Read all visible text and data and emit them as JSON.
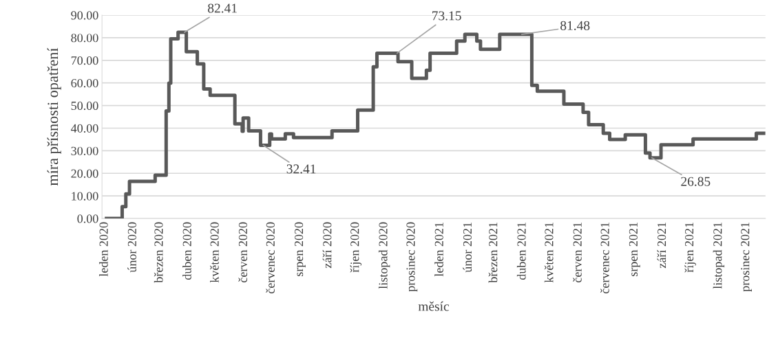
{
  "chart_data": {
    "type": "step",
    "xlabel": "měsíc",
    "ylabel": "míra přísnosti opatření",
    "x": [
      "2020-01-01",
      "2020-01-20",
      "2020-01-24",
      "2020-01-28",
      "2020-02-25",
      "2020-03-08",
      "2020-03-11",
      "2020-03-13",
      "2020-03-21",
      "2020-03-30",
      "2020-04-11",
      "2020-04-18",
      "2020-04-25",
      "2020-05-22",
      "2020-05-30",
      "2020-05-31",
      "2020-06-06",
      "2020-06-19",
      "2020-06-29",
      "2020-07-01",
      "2020-07-16",
      "2020-07-25",
      "2020-09-05",
      "2020-10-03",
      "2020-10-20",
      "2020-10-24",
      "2020-11-16",
      "2020-12-01",
      "2020-12-17",
      "2020-12-21",
      "2021-01-19",
      "2021-01-28",
      "2021-02-10",
      "2021-02-14",
      "2021-03-07",
      "2021-04-11",
      "2021-04-17",
      "2021-05-16",
      "2021-06-06",
      "2021-06-12",
      "2021-06-28",
      "2021-07-05",
      "2021-07-22",
      "2021-08-13",
      "2021-08-18",
      "2021-08-30",
      "2021-10-04",
      "2021-12-12",
      "2021-12-22"
    ],
    "series": [
      {
        "color": "#595959",
        "values": [
          0,
          5.3,
          10.9,
          16.4,
          19.2,
          47.6,
          59.9,
          79.5,
          82.41,
          73.8,
          68.4,
          57.3,
          54.5,
          41.9,
          38.6,
          44.5,
          38.8,
          32.41,
          37.4,
          35.2,
          37.5,
          35.8,
          38.8,
          48.0,
          67.1,
          73.15,
          69.4,
          62.0,
          65.6,
          73.15,
          78.5,
          81.48,
          78.5,
          74.9,
          81.48,
          58.9,
          56.3,
          50.6,
          47.0,
          41.5,
          37.7,
          35.0,
          37.0,
          29.0,
          26.85,
          32.6,
          35.2,
          37.7,
          37.7
        ]
      }
    ],
    "xlim": [
      "2019-12-29",
      "2021-12-22"
    ],
    "xticks": [
      {
        "value": "2020-01-01",
        "label": "leden 2020"
      },
      {
        "value": "2020-02-01",
        "label": "únor 2020"
      },
      {
        "value": "2020-03-01",
        "label": "březen 2020"
      },
      {
        "value": "2020-04-01",
        "label": "duben 2020"
      },
      {
        "value": "2020-05-01",
        "label": "květen 2020"
      },
      {
        "value": "2020-06-01",
        "label": "červen 2020"
      },
      {
        "value": "2020-07-01",
        "label": "červenec 2020"
      },
      {
        "value": "2020-08-01",
        "label": "srpen 2020"
      },
      {
        "value": "2020-09-01",
        "label": "září 2020"
      },
      {
        "value": "2020-10-01",
        "label": "říjen 2020"
      },
      {
        "value": "2020-11-01",
        "label": "listopad 2020"
      },
      {
        "value": "2020-12-01",
        "label": "prosinec 2020"
      },
      {
        "value": "2021-01-01",
        "label": "leden 2021"
      },
      {
        "value": "2021-02-01",
        "label": "únor 2021"
      },
      {
        "value": "2021-03-01",
        "label": "březen 2021"
      },
      {
        "value": "2021-04-01",
        "label": "duben 2021"
      },
      {
        "value": "2021-05-01",
        "label": "květen 2021"
      },
      {
        "value": "2021-06-01",
        "label": "červen 2021"
      },
      {
        "value": "2021-07-01",
        "label": "červenec 2021"
      },
      {
        "value": "2021-08-01",
        "label": "srpen 2021"
      },
      {
        "value": "2021-09-01",
        "label": "září 2021"
      },
      {
        "value": "2021-10-01",
        "label": "říjen 2021"
      },
      {
        "value": "2021-11-01",
        "label": "listopad 2021"
      },
      {
        "value": "2021-12-01",
        "label": "prosinec 2021"
      }
    ],
    "ylim": [
      0,
      90
    ],
    "yticks": [
      {
        "value": 0,
        "label": "0.00"
      },
      {
        "value": 10,
        "label": "10.00"
      },
      {
        "value": 20,
        "label": "20.00"
      },
      {
        "value": 30,
        "label": "30.00"
      },
      {
        "value": 40,
        "label": "40.00"
      },
      {
        "value": 50,
        "label": "50.00"
      },
      {
        "value": 60,
        "label": "60.00"
      },
      {
        "value": 70,
        "label": "70.00"
      },
      {
        "value": 80,
        "label": "80.00"
      },
      {
        "value": 90,
        "label": "90.00"
      }
    ],
    "grid": "y",
    "line_style": "solid",
    "marker": "none",
    "annotations": [
      {
        "text": "82.41",
        "x": "2020-03-28",
        "y": 82.41
      },
      {
        "text": "32.41",
        "x": "2020-06-22",
        "y": 32.41
      },
      {
        "text": "73.15",
        "x": "2020-11-15",
        "y": 73.15
      },
      {
        "text": "81.48",
        "x": "2021-03-31",
        "y": 81.48
      },
      {
        "text": "26.85",
        "x": "2021-08-20",
        "y": 26.85
      }
    ]
  }
}
